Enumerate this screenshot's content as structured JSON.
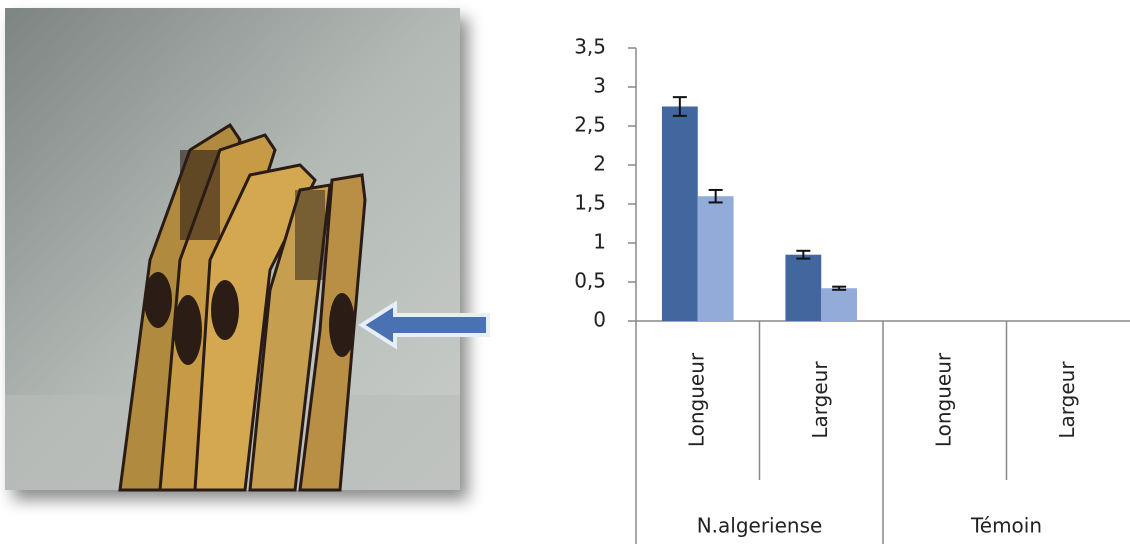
{
  "chart_data": {
    "type": "bar",
    "categories": [
      "Longueur",
      "Largeur",
      "Longueur",
      "Largeur"
    ],
    "group_labels": [
      "N.algeriense",
      "Témoin"
    ],
    "series": [
      {
        "color": "#41679e",
        "values": [
          2.75,
          0.85,
          0,
          0
        ],
        "errors": [
          0.12,
          0.05,
          null,
          null
        ]
      },
      {
        "color": "#93abd8",
        "values": [
          1.6,
          0.42,
          0,
          0
        ],
        "errors": [
          0.08,
          0.02,
          null,
          null
        ]
      }
    ],
    "ylim": [
      0,
      3.5
    ],
    "yticks": [
      0,
      {
        "value": 0.5,
        "label": "0,5"
      },
      1,
      {
        "value": 1.5,
        "label": "1,5"
      },
      2,
      {
        "value": 2.5,
        "label": "2,5"
      },
      3,
      {
        "value": 3.5,
        "label": "3,5"
      }
    ]
  }
}
